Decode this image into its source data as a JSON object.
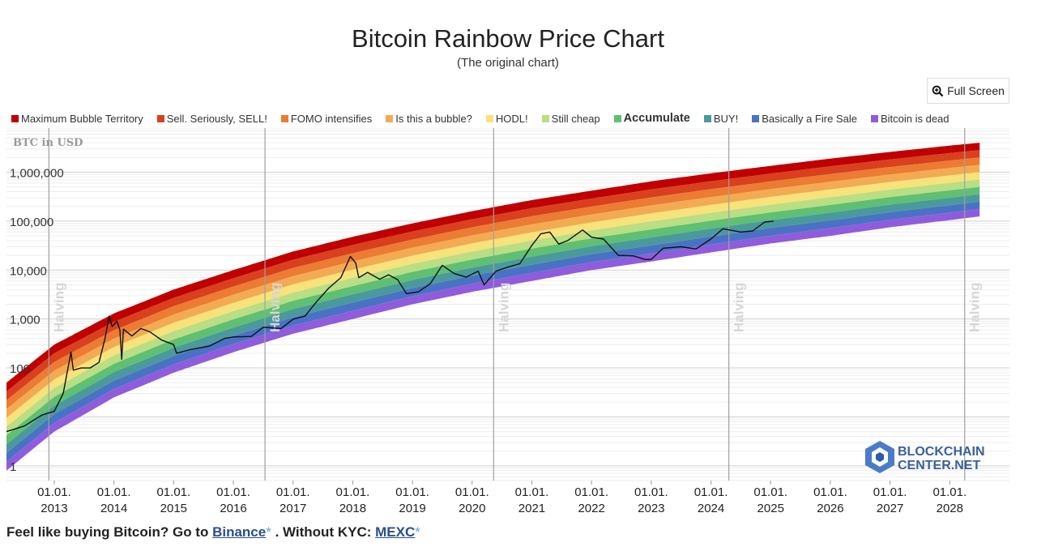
{
  "header": {
    "title": "Bitcoin Rainbow Price Chart",
    "subtitle": "(The original chart)",
    "fullscreen_label": "Full Screen"
  },
  "legend": [
    {
      "label": "Maximum Bubble Territory",
      "color": "#c00000",
      "bold": false
    },
    {
      "label": "Sell. Seriously, SELL!",
      "color": "#d9401e",
      "bold": false
    },
    {
      "label": "FOMO intensifies",
      "color": "#ec7b33",
      "bold": false
    },
    {
      "label": "Is this a bubble?",
      "color": "#f2ab52",
      "bold": false
    },
    {
      "label": "HODL!",
      "color": "#f8e27c",
      "bold": false
    },
    {
      "label": "Still cheap",
      "color": "#b9de83",
      "bold": false
    },
    {
      "label": "Accumulate",
      "color": "#5fbf73",
      "bold": true
    },
    {
      "label": "BUY!",
      "color": "#4a9a9c",
      "bold": false
    },
    {
      "label": "Basically a Fire Sale",
      "color": "#4a72c4",
      "bold": false
    },
    {
      "label": "Bitcoin is dead",
      "color": "#8f5cdc",
      "bold": false
    }
  ],
  "chart_data": {
    "type": "line",
    "ylabel": "BTC in USD",
    "yscale": "log",
    "ylim": [
      0.5,
      8000000
    ],
    "xlim": [
      2012.2,
      2029.0
    ],
    "y_ticks": [
      {
        "value": 1,
        "label": "1"
      },
      {
        "value": 10,
        "label": ""
      },
      {
        "value": 100,
        "label": "100"
      },
      {
        "value": 1000,
        "label": "1,000"
      },
      {
        "value": 10000,
        "label": "10,000"
      },
      {
        "value": 100000,
        "label": "100,000"
      },
      {
        "value": 1000000,
        "label": "1,000,000"
      }
    ],
    "x_ticks": [
      {
        "value": 2013,
        "top": "01.01.",
        "bottom": "2013"
      },
      {
        "value": 2014,
        "top": "01.01.",
        "bottom": "2014"
      },
      {
        "value": 2015,
        "top": "01.01.",
        "bottom": "2015"
      },
      {
        "value": 2016,
        "top": "01.01.",
        "bottom": "2016"
      },
      {
        "value": 2017,
        "top": "01.01.",
        "bottom": "2017"
      },
      {
        "value": 2018,
        "top": "01.01.",
        "bottom": "2018"
      },
      {
        "value": 2019,
        "top": "01.01.",
        "bottom": "2019"
      },
      {
        "value": 2020,
        "top": "01.01.",
        "bottom": "2020"
      },
      {
        "value": 2021,
        "top": "01.01.",
        "bottom": "2021"
      },
      {
        "value": 2022,
        "top": "01.01.",
        "bottom": "2022"
      },
      {
        "value": 2023,
        "top": "01.01.",
        "bottom": "2023"
      },
      {
        "value": 2024,
        "top": "01.01.",
        "bottom": "2024"
      },
      {
        "value": 2025,
        "top": "01.01.",
        "bottom": "2025"
      },
      {
        "value": 2026,
        "top": "01.01.",
        "bottom": "2026"
      },
      {
        "value": 2027,
        "top": "01.01.",
        "bottom": "2027"
      },
      {
        "value": 2028,
        "top": "01.01.",
        "bottom": "2028"
      }
    ],
    "halvings": [
      {
        "date": 2012.91,
        "label": "Halving"
      },
      {
        "date": 2016.53,
        "label": "Halving"
      },
      {
        "date": 2020.36,
        "label": "Halving"
      },
      {
        "date": 2024.3,
        "label": "Halving"
      },
      {
        "date": 2028.25,
        "label": "Halving"
      }
    ],
    "bands": {
      "colors": [
        "#c00000",
        "#d9401e",
        "#ec7b33",
        "#f2ab52",
        "#f8e27c",
        "#b9de83",
        "#5fbf73",
        "#4a9a9c",
        "#4a72c4",
        "#8f5cdc"
      ],
      "lower_edge": [
        {
          "x": 2012.2,
          "y": 0.8
        },
        {
          "x": 2013.0,
          "y": 5
        },
        {
          "x": 2014.0,
          "y": 25
        },
        {
          "x": 2015.0,
          "y": 80
        },
        {
          "x": 2016.0,
          "y": 210
        },
        {
          "x": 2017.0,
          "y": 500
        },
        {
          "x": 2018.0,
          "y": 1000
        },
        {
          "x": 2019.0,
          "y": 2000
        },
        {
          "x": 2020.0,
          "y": 3600
        },
        {
          "x": 2021.0,
          "y": 6000
        },
        {
          "x": 2022.0,
          "y": 10000
        },
        {
          "x": 2023.0,
          "y": 15000
        },
        {
          "x": 2024.0,
          "y": 23000
        },
        {
          "x": 2025.0,
          "y": 35000
        },
        {
          "x": 2026.0,
          "y": 50000
        },
        {
          "x": 2027.0,
          "y": 75000
        },
        {
          "x": 2028.0,
          "y": 105000
        },
        {
          "x": 2028.5,
          "y": 125000
        }
      ],
      "upper_edge": [
        {
          "x": 2012.2,
          "y": 50
        },
        {
          "x": 2013.0,
          "y": 300
        },
        {
          "x": 2014.0,
          "y": 1300
        },
        {
          "x": 2015.0,
          "y": 4000
        },
        {
          "x": 2016.0,
          "y": 10000
        },
        {
          "x": 2017.0,
          "y": 24000
        },
        {
          "x": 2018.0,
          "y": 48000
        },
        {
          "x": 2019.0,
          "y": 90000
        },
        {
          "x": 2020.0,
          "y": 160000
        },
        {
          "x": 2021.0,
          "y": 270000
        },
        {
          "x": 2022.0,
          "y": 420000
        },
        {
          "x": 2023.0,
          "y": 650000
        },
        {
          "x": 2024.0,
          "y": 950000
        },
        {
          "x": 2025.0,
          "y": 1350000
        },
        {
          "x": 2026.0,
          "y": 1900000
        },
        {
          "x": 2027.0,
          "y": 2600000
        },
        {
          "x": 2028.0,
          "y": 3500000
        },
        {
          "x": 2028.5,
          "y": 4000000
        }
      ]
    },
    "series": [
      {
        "name": "",
        "color": "#111111",
        "points": [
          {
            "x": 2012.2,
            "y": 5
          },
          {
            "x": 2012.5,
            "y": 6.5
          },
          {
            "x": 2012.8,
            "y": 11
          },
          {
            "x": 2013.0,
            "y": 13
          },
          {
            "x": 2013.15,
            "y": 30
          },
          {
            "x": 2013.28,
            "y": 210
          },
          {
            "x": 2013.32,
            "y": 90
          },
          {
            "x": 2013.45,
            "y": 100
          },
          {
            "x": 2013.6,
            "y": 100
          },
          {
            "x": 2013.75,
            "y": 130
          },
          {
            "x": 2013.85,
            "y": 400
          },
          {
            "x": 2013.92,
            "y": 1150
          },
          {
            "x": 2013.97,
            "y": 700
          },
          {
            "x": 2014.05,
            "y": 900
          },
          {
            "x": 2014.1,
            "y": 600
          },
          {
            "x": 2014.13,
            "y": 150
          },
          {
            "x": 2014.16,
            "y": 620
          },
          {
            "x": 2014.3,
            "y": 450
          },
          {
            "x": 2014.45,
            "y": 640
          },
          {
            "x": 2014.6,
            "y": 550
          },
          {
            "x": 2014.8,
            "y": 370
          },
          {
            "x": 2015.0,
            "y": 300
          },
          {
            "x": 2015.05,
            "y": 200
          },
          {
            "x": 2015.3,
            "y": 240
          },
          {
            "x": 2015.6,
            "y": 280
          },
          {
            "x": 2015.85,
            "y": 400
          },
          {
            "x": 2016.0,
            "y": 430
          },
          {
            "x": 2016.3,
            "y": 440
          },
          {
            "x": 2016.5,
            "y": 680
          },
          {
            "x": 2016.8,
            "y": 640
          },
          {
            "x": 2017.0,
            "y": 990
          },
          {
            "x": 2017.2,
            "y": 1150
          },
          {
            "x": 2017.4,
            "y": 2300
          },
          {
            "x": 2017.6,
            "y": 4300
          },
          {
            "x": 2017.8,
            "y": 7000
          },
          {
            "x": 2017.96,
            "y": 19000
          },
          {
            "x": 2018.05,
            "y": 14000
          },
          {
            "x": 2018.1,
            "y": 7000
          },
          {
            "x": 2018.25,
            "y": 9000
          },
          {
            "x": 2018.45,
            "y": 6500
          },
          {
            "x": 2018.6,
            "y": 8000
          },
          {
            "x": 2018.75,
            "y": 6400
          },
          {
            "x": 2018.9,
            "y": 3300
          },
          {
            "x": 2019.1,
            "y": 3600
          },
          {
            "x": 2019.3,
            "y": 5300
          },
          {
            "x": 2019.5,
            "y": 12500
          },
          {
            "x": 2019.7,
            "y": 8500
          },
          {
            "x": 2019.9,
            "y": 7200
          },
          {
            "x": 2020.1,
            "y": 9500
          },
          {
            "x": 2020.2,
            "y": 5000
          },
          {
            "x": 2020.4,
            "y": 9500
          },
          {
            "x": 2020.6,
            "y": 11500
          },
          {
            "x": 2020.8,
            "y": 13500
          },
          {
            "x": 2021.0,
            "y": 32000
          },
          {
            "x": 2021.15,
            "y": 55000
          },
          {
            "x": 2021.3,
            "y": 60000
          },
          {
            "x": 2021.45,
            "y": 34000
          },
          {
            "x": 2021.6,
            "y": 40000
          },
          {
            "x": 2021.85,
            "y": 66000
          },
          {
            "x": 2022.0,
            "y": 47000
          },
          {
            "x": 2022.2,
            "y": 43000
          },
          {
            "x": 2022.45,
            "y": 20000
          },
          {
            "x": 2022.7,
            "y": 19500
          },
          {
            "x": 2022.9,
            "y": 16500
          },
          {
            "x": 2023.0,
            "y": 16600
          },
          {
            "x": 2023.2,
            "y": 28000
          },
          {
            "x": 2023.5,
            "y": 30000
          },
          {
            "x": 2023.75,
            "y": 27000
          },
          {
            "x": 2024.0,
            "y": 43000
          },
          {
            "x": 2024.2,
            "y": 70000
          },
          {
            "x": 2024.5,
            "y": 60000
          },
          {
            "x": 2024.7,
            "y": 63000
          },
          {
            "x": 2024.9,
            "y": 96000
          },
          {
            "x": 2025.05,
            "y": 100000
          }
        ]
      }
    ]
  },
  "watermark": {
    "line1": "BLOCKCHAIN",
    "line2": "CENTER.NET"
  },
  "footer": {
    "text1": "Feel like buying Bitcoin? Go to ",
    "link1": "Binance",
    "star1": "*",
    "text2": " . Without KYC: ",
    "link2": "MEXC",
    "star2": "*"
  }
}
